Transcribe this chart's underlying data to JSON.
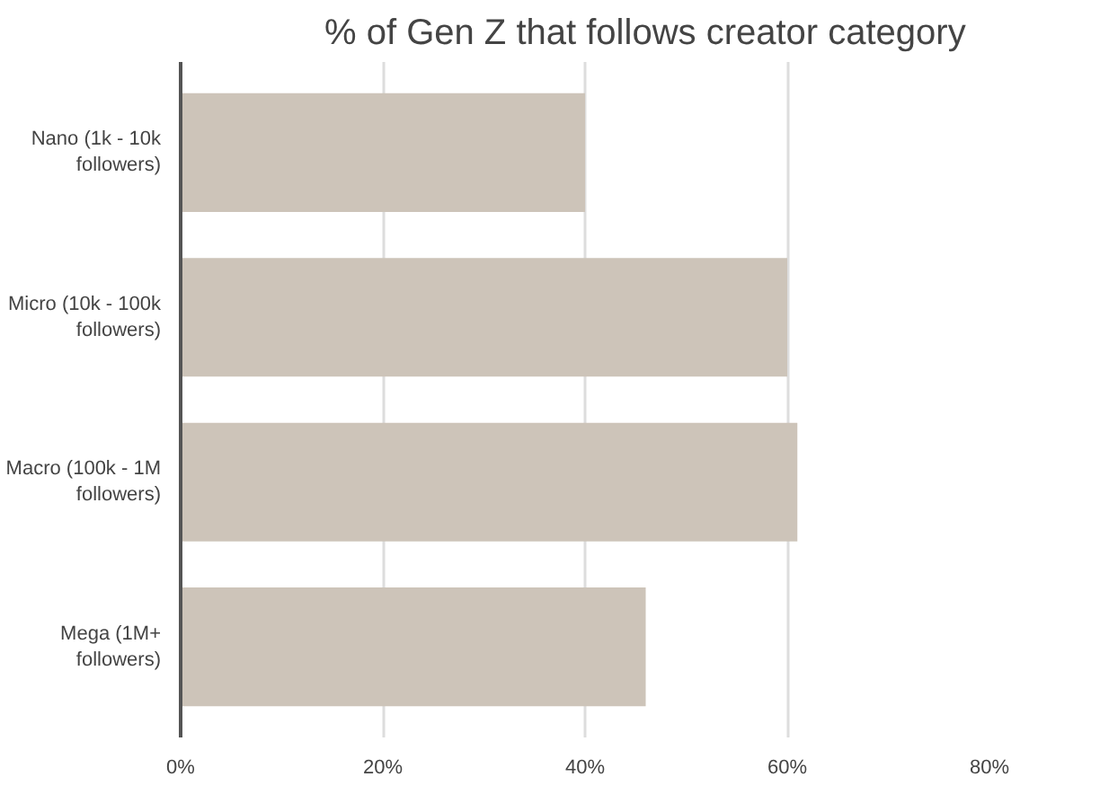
{
  "chart_data": {
    "type": "bar",
    "orientation": "horizontal",
    "title": "% of Gen Z that follows creator category",
    "categories": [
      "Nano (1k - 10k followers)",
      "Micro (10k - 100k followers)",
      "Macro (100k - 1M followers)",
      "Mega (1M+ followers)"
    ],
    "values": [
      40,
      60,
      61,
      46
    ],
    "color": "#cdc4b9",
    "xlim": [
      0,
      80
    ],
    "xticks": [
      {
        "value": 0,
        "label": "0%"
      },
      {
        "value": 20,
        "label": "20%"
      },
      {
        "value": 40,
        "label": "40%"
      },
      {
        "value": 60,
        "label": "60%"
      },
      {
        "value": 80,
        "label": "80%"
      }
    ],
    "grid": "x"
  }
}
